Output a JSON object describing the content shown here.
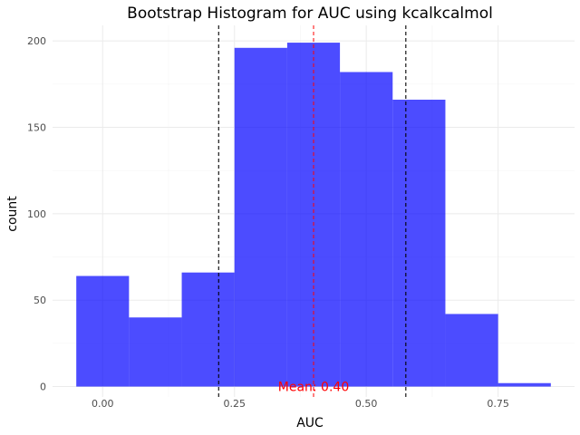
{
  "chart_data": {
    "type": "bar",
    "title": "Bootstrap Histogram for AUC using kcalkcalmol",
    "xlabel": "AUC",
    "ylabel": "count",
    "bin_width": 0.1,
    "bins": [
      {
        "x0": -0.05,
        "x1": 0.05,
        "count": 64
      },
      {
        "x0": 0.05,
        "x1": 0.15,
        "count": 40
      },
      {
        "x0": 0.15,
        "x1": 0.25,
        "count": 66
      },
      {
        "x0": 0.25,
        "x1": 0.35,
        "count": 196
      },
      {
        "x0": 0.35,
        "x1": 0.45,
        "count": 199
      },
      {
        "x0": 0.45,
        "x1": 0.55,
        "count": 182
      },
      {
        "x0": 0.55,
        "x1": 0.65,
        "count": 166
      },
      {
        "x0": 0.65,
        "x1": 0.75,
        "count": 42
      },
      {
        "x0": 0.75,
        "x1": 0.85,
        "count": 2
      }
    ],
    "xlim": [
      -0.095,
      0.895
    ],
    "ylim": [
      -6,
      209
    ],
    "x_ticks": [
      0.0,
      0.25,
      0.5,
      0.75
    ],
    "x_tick_labels": [
      "0.00",
      "0.25",
      "0.50",
      "0.75"
    ],
    "y_ticks": [
      0,
      50,
      100,
      150,
      200
    ],
    "y_tick_labels": [
      "0",
      "50",
      "100",
      "150",
      "200"
    ],
    "bar_color": "#0000ff",
    "bar_opacity": 0.7,
    "mean": 0.4,
    "mean_color": "#ff0000",
    "mean_label": "Mean: 0.40",
    "ci_lower": 0.22,
    "ci_upper": 0.575,
    "ci_color": "#000000",
    "grid": true
  }
}
